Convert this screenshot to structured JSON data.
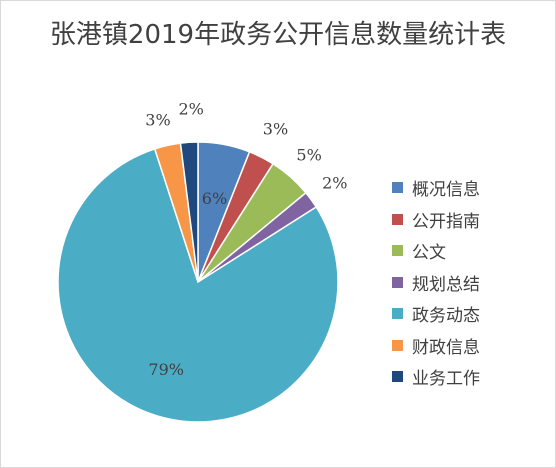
{
  "chart_data": {
    "type": "pie",
    "title": "张港镇2019年政务公开信息数量统计表",
    "categories": [
      "概况信息",
      "公开指南",
      "公文",
      "规划总结",
      "政务动态",
      "财政信息",
      "业务工作"
    ],
    "values": [
      6,
      3,
      5,
      2,
      79,
      3,
      2
    ],
    "labels": [
      "6%",
      "3%",
      "5%",
      "2%",
      "79%",
      "3%",
      "2%"
    ],
    "colors": [
      "#4f81bd",
      "#c0504d",
      "#9bbb59",
      "#8064a2",
      "#4bacc6",
      "#f79646",
      "#1f497d"
    ],
    "legend_position": "right"
  }
}
